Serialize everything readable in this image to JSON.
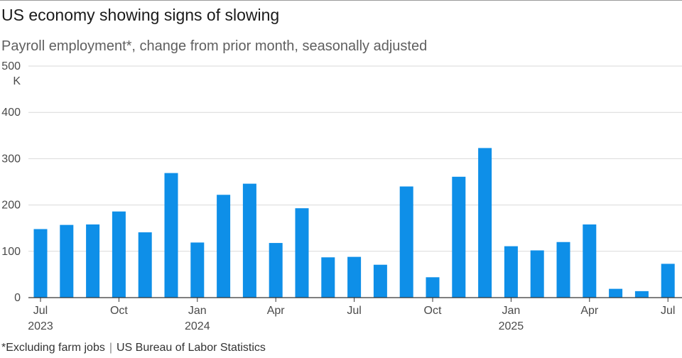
{
  "chart_data": {
    "type": "bar",
    "title": "US economy showing signs of slowing",
    "subtitle": "Payroll employment*, change from prior month, seasonally adjusted",
    "y_unit": "K",
    "ylim": [
      0,
      500
    ],
    "yticks": [
      0,
      100,
      200,
      300,
      400,
      500
    ],
    "grid": true,
    "bar_color": "#0e8fe8",
    "categories": [
      "2023-07",
      "2023-08",
      "2023-09",
      "2023-10",
      "2023-11",
      "2023-12",
      "2024-01",
      "2024-02",
      "2024-03",
      "2024-04",
      "2024-05",
      "2024-06",
      "2024-07",
      "2024-08",
      "2024-09",
      "2024-10",
      "2024-11",
      "2024-12",
      "2025-01",
      "2025-02",
      "2025-03",
      "2025-04",
      "2025-05",
      "2025-06",
      "2025-07"
    ],
    "values": [
      148,
      157,
      158,
      186,
      141,
      269,
      119,
      222,
      246,
      118,
      193,
      87,
      88,
      71,
      240,
      44,
      261,
      323,
      111,
      102,
      120,
      158,
      19,
      14,
      73
    ],
    "x_tick_labels": [
      {
        "index": 0,
        "label": "Jul",
        "year": "2023"
      },
      {
        "index": 3,
        "label": "Oct",
        "year": ""
      },
      {
        "index": 6,
        "label": "Jan",
        "year": "2024"
      },
      {
        "index": 9,
        "label": "Apr",
        "year": ""
      },
      {
        "index": 12,
        "label": "Jul",
        "year": ""
      },
      {
        "index": 15,
        "label": "Oct",
        "year": ""
      },
      {
        "index": 18,
        "label": "Jan",
        "year": "2025"
      },
      {
        "index": 21,
        "label": "Apr",
        "year": ""
      },
      {
        "index": 24,
        "label": "Jul",
        "year": ""
      }
    ]
  },
  "footer": {
    "note": "*Excluding farm jobs",
    "separator": "|",
    "source": "US Bureau of Labor Statistics"
  }
}
